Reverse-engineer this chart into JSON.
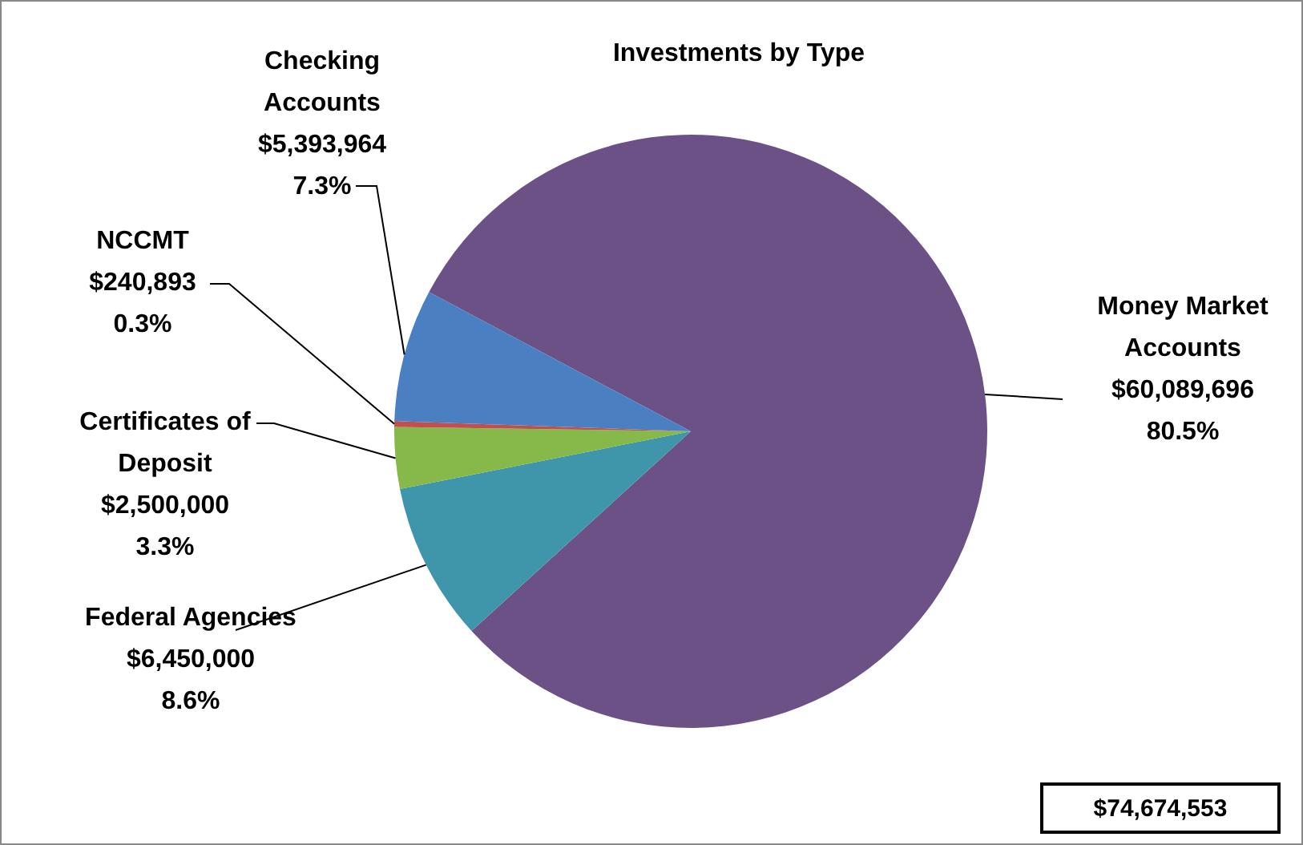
{
  "chart_data": {
    "type": "pie",
    "title": "Investments by Type",
    "categories": [
      "Money Market Accounts",
      "Federal Agencies",
      "Certificates of Deposit",
      "NCCMT",
      "Checking Accounts"
    ],
    "values": [
      60089696,
      6450000,
      2500000,
      240893,
      5393964
    ],
    "colors": [
      "#6b5186",
      "#3f96ab",
      "#86b84a",
      "#c0504d",
      "#4a7fc1"
    ],
    "value_labels": [
      "$60,089,696\n80.5%",
      "$6,450,000\n8.6%",
      "$2,500,000\n3.3%",
      "$240,893\n0.3%",
      "$5,393,964\n7.3%"
    ],
    "annotations": [
      "$74,674,553"
    ],
    "legend": false
  }
}
